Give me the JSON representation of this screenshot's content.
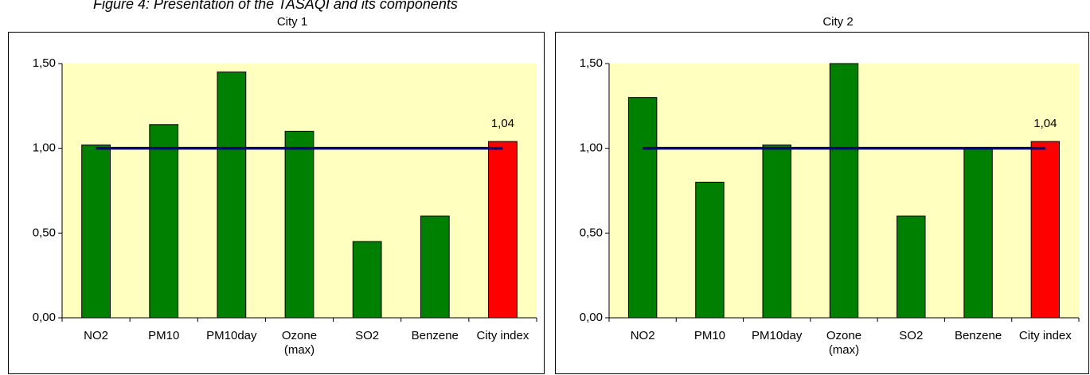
{
  "caption": "Figure 4: Presentation of the TASAQI and its components",
  "chart_data": [
    {
      "type": "bar",
      "title": "City 1",
      "categories": [
        "NO2",
        "PM10",
        "PM10day",
        "Ozone (max)",
        "SO2",
        "Benzene",
        "City index"
      ],
      "values": [
        1.02,
        1.14,
        1.45,
        1.1,
        0.45,
        0.6,
        1.04
      ],
      "value_labels": [
        null,
        null,
        null,
        null,
        null,
        null,
        "1,04"
      ],
      "colors": [
        "#008000",
        "#008000",
        "#008000",
        "#008000",
        "#008000",
        "#008000",
        "#ff0000"
      ],
      "target_line": 1,
      "target_color": "#000080",
      "ylim": [
        0,
        1.5
      ],
      "yticks": [
        {
          "value": 0,
          "label": "0,00"
        },
        {
          "value": 0.5,
          "label": "0,50"
        },
        {
          "value": 1,
          "label": "1,00"
        },
        {
          "value": 1.5,
          "label": "1,50"
        }
      ]
    },
    {
      "type": "bar",
      "title": "City 2",
      "categories": [
        "NO2",
        "PM10",
        "PM10day",
        "Ozone (max)",
        "SO2",
        "Benzene",
        "City index"
      ],
      "values": [
        1.3,
        0.8,
        1.02,
        1.5,
        0.6,
        1.0,
        1.04
      ],
      "value_labels": [
        null,
        null,
        null,
        null,
        null,
        null,
        "1,04"
      ],
      "colors": [
        "#008000",
        "#008000",
        "#008000",
        "#008000",
        "#008000",
        "#008000",
        "#ff0000"
      ],
      "target_line": 1,
      "target_color": "#000080",
      "ylim": [
        0,
        1.5
      ],
      "yticks": [
        {
          "value": 0,
          "label": "0,00"
        },
        {
          "value": 0.5,
          "label": "0,50"
        },
        {
          "value": 1,
          "label": "1,00"
        },
        {
          "value": 1.5,
          "label": "1,50"
        }
      ]
    }
  ]
}
